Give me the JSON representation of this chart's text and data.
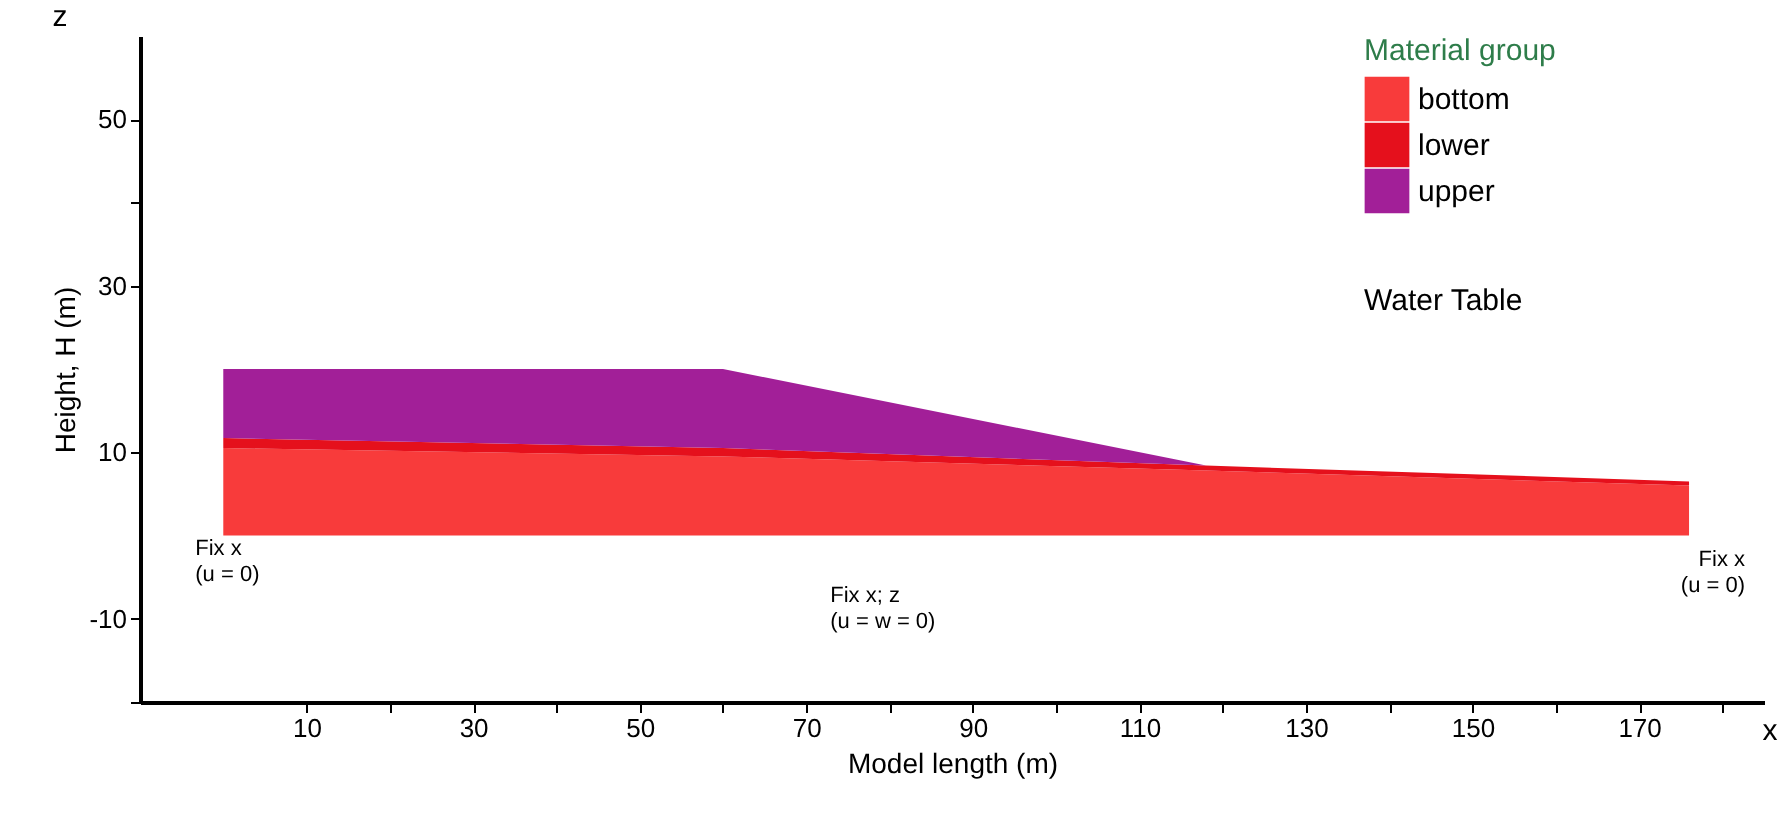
{
  "chart_data": {
    "type": "area",
    "stacked": true,
    "xlabel": "Model length (m)",
    "ylabel": "Height, H (m)",
    "legend_title": "Material group",
    "legend": "top right",
    "grid": false,
    "x": [
      0,
      60,
      118,
      176
    ],
    "series": [
      {
        "name": "bottom",
        "color": "#f83b3b",
        "values": [
          10.5,
          9.5,
          7.8,
          6.0
        ]
      },
      {
        "name": "lower",
        "color": "#e5101c",
        "values": [
          1.2,
          1.0,
          0.6,
          0.5
        ]
      },
      {
        "name": "upper",
        "color": "#a21f98",
        "values": [
          8.3,
          9.5,
          0,
          0
        ]
      }
    ],
    "xlim": [
      -10,
      185
    ],
    "ylim": [
      -20,
      60
    ],
    "xticks": [
      10,
      {
        "value": 20,
        "label": null
      },
      30,
      {
        "value": 40,
        "label": null
      },
      50,
      {
        "value": 60,
        "label": null
      },
      70,
      {
        "value": 80,
        "label": null
      },
      90,
      {
        "value": 100,
        "label": null
      },
      110,
      {
        "value": 120,
        "label": null
      },
      130,
      {
        "value": 140,
        "label": null
      },
      150,
      {
        "value": 160,
        "label": null
      },
      170,
      {
        "value": 180,
        "label": null
      }
    ],
    "yticks": [
      {
        "value": -20,
        "label": null
      },
      -10,
      10,
      30,
      {
        "value": 40,
        "label": null
      },
      50
    ],
    "annotations": [
      {
        "text": "Fix x\n (u =  0)",
        "x": 0,
        "y": 7
      },
      {
        "text": "Fix x; z\n     (u = w = 0)",
        "x": 70,
        "y": 0
      },
      {
        "text": "Fix x\n(u = 0)",
        "x": 176,
        "y": 0
      },
      "Water Table",
      "z",
      "x"
    ]
  }
}
